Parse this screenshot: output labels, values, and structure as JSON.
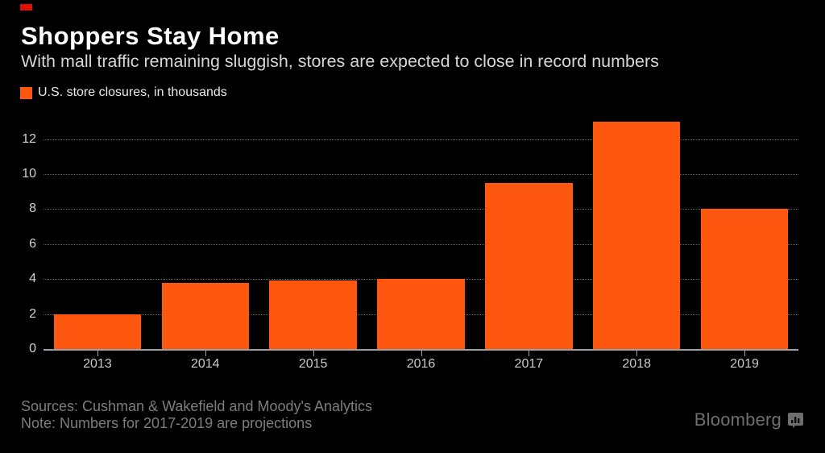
{
  "header": {
    "title": "Shoppers Stay Home",
    "subtitle": "With mall traffic remaining sluggish, stores are expected to close in record numbers"
  },
  "legend": {
    "label": "U.S. store closures, in thousands",
    "swatch_color": "#fe570f"
  },
  "chart_data": {
    "type": "bar",
    "categories": [
      "2013",
      "2014",
      "2015",
      "2016",
      "2017",
      "2018",
      "2019"
    ],
    "values": [
      2.0,
      3.8,
      3.9,
      4.0,
      9.5,
      13.0,
      8.0
    ],
    "title": "Shoppers Stay Home",
    "xlabel": "",
    "ylabel": "U.S. store closures, in thousands",
    "ylim": [
      0,
      13.5
    ],
    "yticks": [
      0,
      2,
      4,
      6,
      8,
      10,
      12
    ],
    "grid": "horizontal-dotted",
    "legend_position": "top-left",
    "bar_color": "#fe570f"
  },
  "footer": {
    "sources": "Sources: Cushman & Wakefield and Moody's Analytics",
    "note": "Note: Numbers for 2017-2019 are projections",
    "brand": "Bloomberg",
    "brand_icon": "bar-chart-bubble-icon"
  },
  "colors": {
    "background": "#000000",
    "accent_orange": "#fe570f",
    "red_corner_mark": "#e01000",
    "axis_line": "#9ba1a7",
    "gridline": "#626262",
    "title_text": "#ffffff",
    "subtitle_text": "#d6d6d6",
    "axis_label_text": "#cccccc",
    "footer_text": "#7d7d7d",
    "brand_gray": "#6e6e6e"
  }
}
